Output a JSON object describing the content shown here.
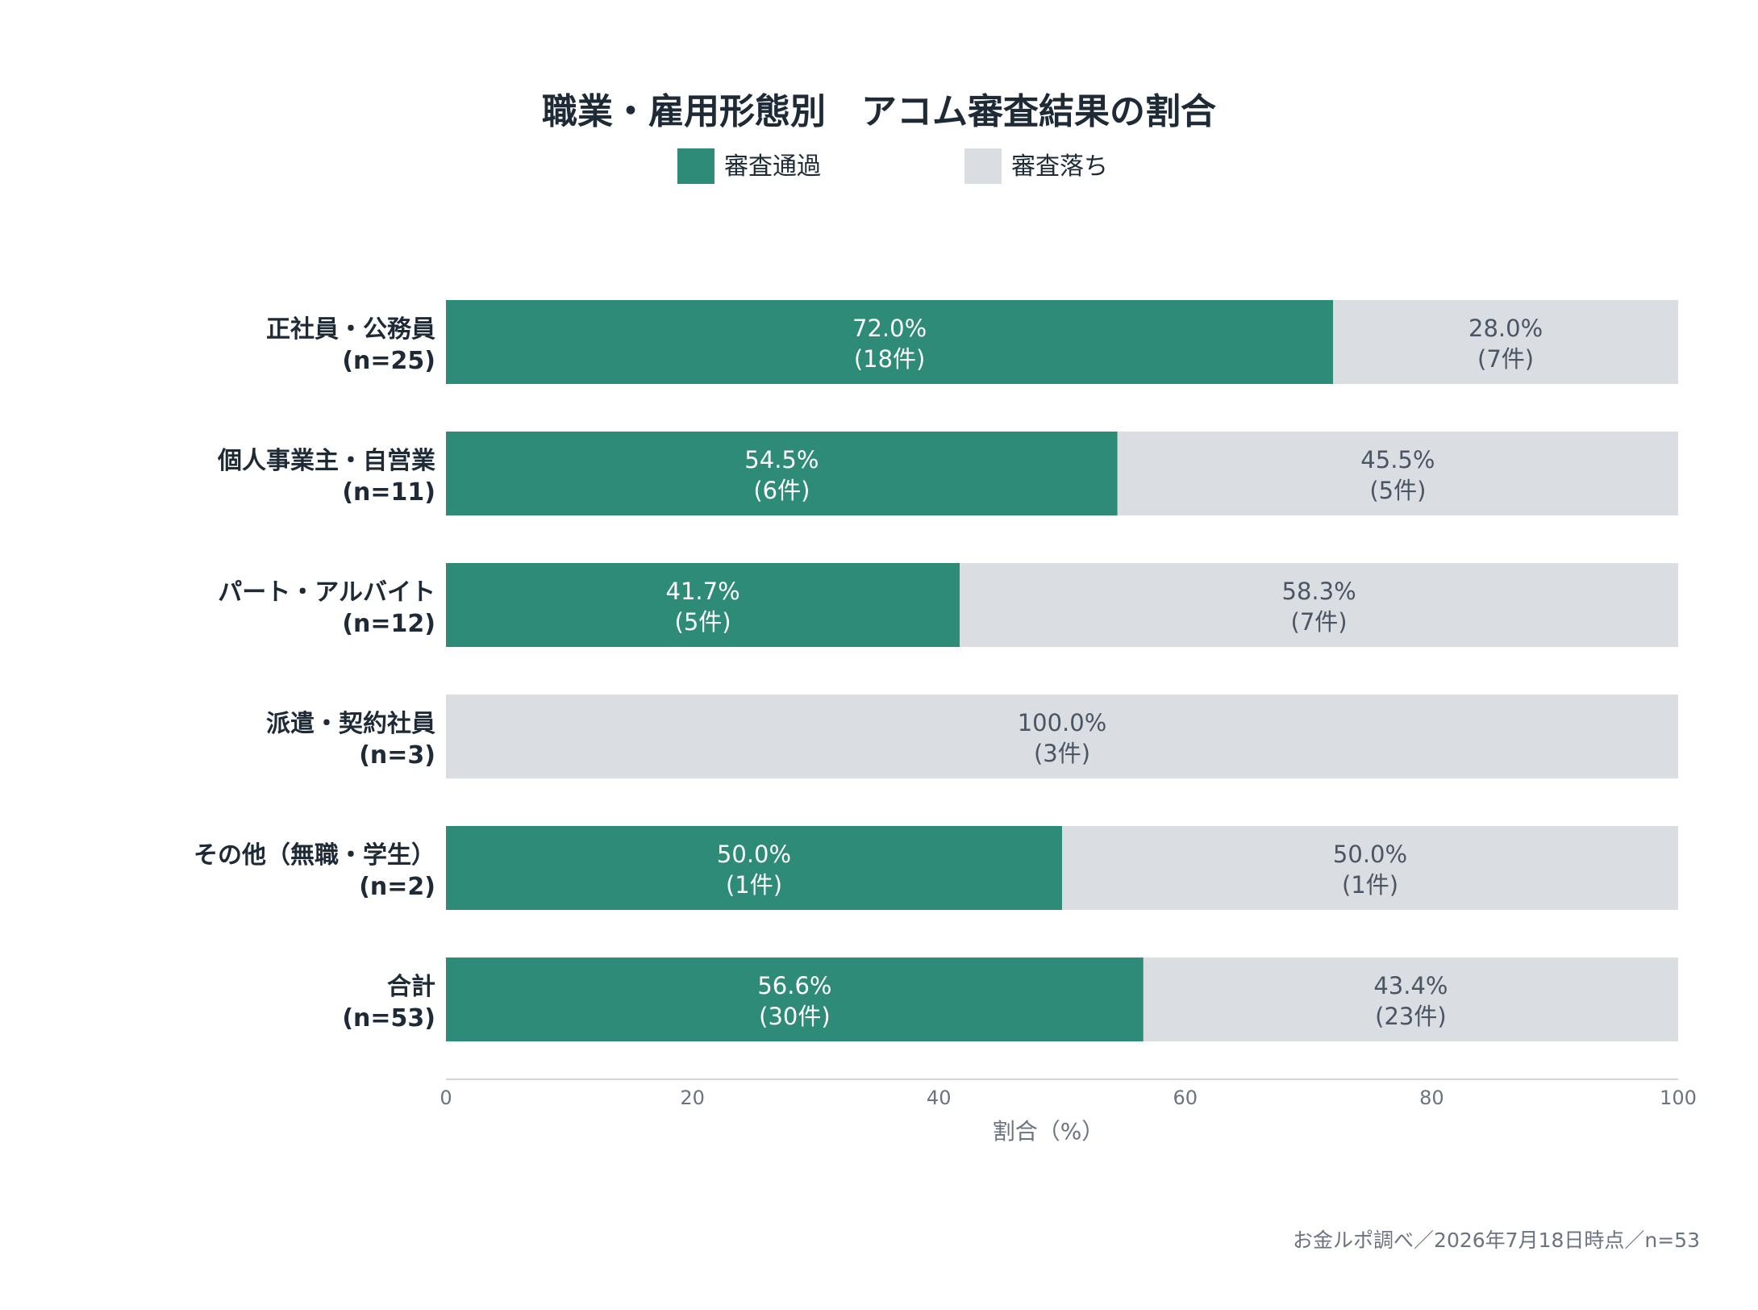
{
  "chart_data": {
    "type": "bar",
    "orientation": "horizontal",
    "stacked": true,
    "title": "職業・雇用形態別　アコム審査結果の割合",
    "categories": [
      {
        "label": "正社員・公務員",
        "n": "(n=25)"
      },
      {
        "label": "個人事業主・自営業",
        "n": "(n=11)"
      },
      {
        "label": "パート・アルバイト",
        "n": "(n=12)"
      },
      {
        "label": "派遣・契約社員",
        "n": "(n=3)"
      },
      {
        "label": "その他（無職・学生）",
        "n": "(n=2)"
      },
      {
        "label": "合計",
        "n": "(n=53)"
      }
    ],
    "series": [
      {
        "name": "審査通過",
        "color": "#2e8b78",
        "label_color": "#ffffff",
        "values": [
          72.0,
          54.5,
          41.7,
          0.0,
          50.0,
          56.6
        ],
        "pct_labels": [
          "72.0%",
          "54.5%",
          "41.7%",
          "",
          "50.0%",
          "56.6%"
        ],
        "count_labels": [
          "(18件)",
          "(6件)",
          "(5件)",
          "",
          "(1件)",
          "(30件)"
        ]
      },
      {
        "name": "審査落ち",
        "color": "#dadde1",
        "label_color": "#4b5563",
        "values": [
          28.0,
          45.5,
          58.3,
          100.0,
          50.0,
          43.4
        ],
        "pct_labels": [
          "28.0%",
          "45.5%",
          "58.3%",
          "100.0%",
          "50.0%",
          "43.4%"
        ],
        "count_labels": [
          "(7件)",
          "(5件)",
          "(7件)",
          "(3件)",
          "(1件)",
          "(23件)"
        ]
      }
    ],
    "xlabel": "割合（%）",
    "xlim": [
      0,
      100
    ],
    "xticks": [
      0,
      20,
      40,
      60,
      80,
      100
    ],
    "grid": false,
    "legend": "top-center"
  },
  "source_note": "お金ルポ調べ／2026年7月18日時点／n=53"
}
